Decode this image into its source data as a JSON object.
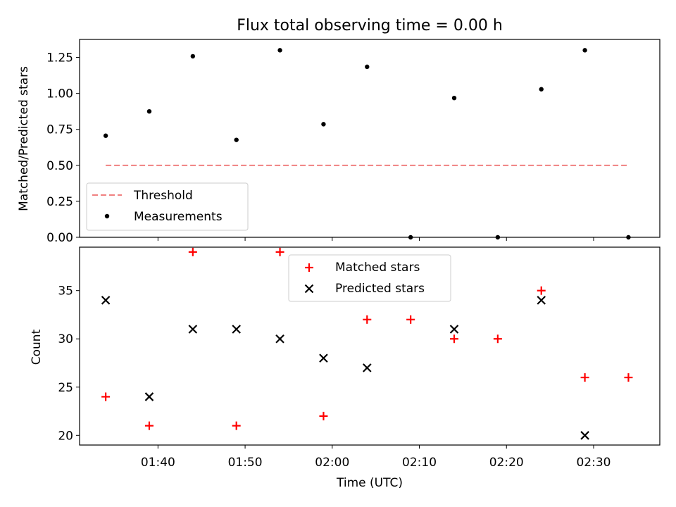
{
  "chart_data": [
    {
      "type": "scatter",
      "title": "Flux total observing time = 0.00 h",
      "ylabel": "Matched/Predicted stars",
      "ylim": [
        0,
        1.375
      ],
      "yticks": [
        "0.00",
        "0.25",
        "0.50",
        "0.75",
        "1.00",
        "1.25"
      ],
      "grid": false,
      "legend_position": "lower-left",
      "threshold": {
        "name": "Threshold",
        "value": 0.5,
        "x_start": "01:34",
        "x_end": "02:34",
        "color": "#f08080",
        "style": "dashed"
      },
      "series": [
        {
          "name": "Measurements",
          "marker": "dot",
          "color": "#000000",
          "x": [
            "01:34",
            "01:39",
            "01:44",
            "01:49",
            "01:54",
            "01:59",
            "02:04",
            "02:09",
            "02:14",
            "02:19",
            "02:24",
            "02:29",
            "02:34"
          ],
          "y": [
            0.706,
            0.875,
            1.258,
            0.677,
            1.3,
            0.786,
            1.185,
            0.0,
            0.968,
            0.0,
            1.029,
            1.3,
            0.0
          ]
        }
      ]
    },
    {
      "type": "scatter",
      "xlabel": "Time (UTC)",
      "ylabel": "Count",
      "ylim": [
        19,
        39.5
      ],
      "yticks": [
        "20",
        "25",
        "30",
        "35"
      ],
      "xticks": [
        "01:40",
        "01:50",
        "02:00",
        "02:10",
        "02:20",
        "02:30"
      ],
      "grid": false,
      "legend_position": "upper-center",
      "series": [
        {
          "name": "Matched stars",
          "marker": "plus",
          "color": "#ff0000",
          "x": [
            "01:34",
            "01:39",
            "01:44",
            "01:49",
            "01:54",
            "01:59",
            "02:04",
            "02:09",
            "02:14",
            "02:19",
            "02:24",
            "02:29",
            "02:34"
          ],
          "y": [
            24,
            21,
            39,
            21,
            39,
            22,
            32,
            32,
            30,
            30,
            35,
            26,
            26
          ]
        },
        {
          "name": "Predicted stars",
          "marker": "x",
          "color": "#000000",
          "x": [
            "01:34",
            "01:39",
            "01:44",
            "01:49",
            "01:54",
            "01:59",
            "02:04",
            "02:14",
            "02:24",
            "02:29"
          ],
          "y": [
            34,
            24,
            31,
            31,
            30,
            28,
            27,
            31,
            34,
            20
          ]
        }
      ]
    }
  ]
}
